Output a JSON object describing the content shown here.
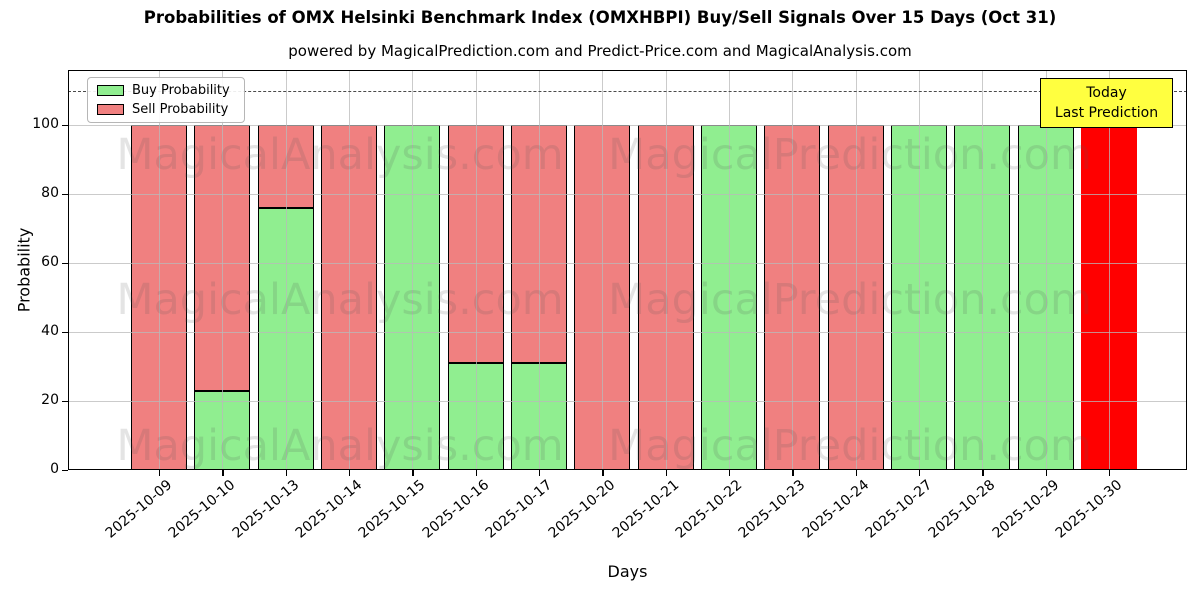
{
  "figure": {
    "title": "Probabilities of OMX Helsinki Benchmark Index (OMXHBPI) Buy/Sell Signals Over 15 Days (Oct 31)",
    "subtitle": "powered by MagicalPrediction.com and Predict-Price.com and MagicalAnalysis.com"
  },
  "axes": {
    "xlabel": "Days",
    "ylabel": "Probability"
  },
  "legend": {
    "items": [
      {
        "label": "Buy Probability",
        "color": "#90EE90"
      },
      {
        "label": "Sell Probability",
        "color": "#F08080"
      }
    ]
  },
  "annotation": {
    "line1": "Today",
    "line2": "Last Prediction",
    "bg_color": "#ffff40"
  },
  "watermarks": {
    "left_text": "MagicalAnalysis.com",
    "right_text": "MagicalPrediction.com"
  },
  "chart_data": {
    "type": "bar",
    "stacked": true,
    "title": "Probabilities of OMX Helsinki Benchmark Index (OMXHBPI) Buy/Sell Signals Over 15 Days (Oct 31)",
    "xlabel": "Days",
    "ylabel": "Probability",
    "categories": [
      "2025-10-09",
      "2025-10-10",
      "2025-10-13",
      "2025-10-14",
      "2025-10-15",
      "2025-10-16",
      "2025-10-17",
      "2025-10-20",
      "2025-10-21",
      "2025-10-22",
      "2025-10-23",
      "2025-10-24",
      "2025-10-27",
      "2025-10-28",
      "2025-10-29",
      "2025-10-30"
    ],
    "series": [
      {
        "name": "Buy Probability",
        "color": "#90EE90",
        "values": [
          0,
          23,
          76,
          0,
          100,
          31,
          31,
          0,
          0,
          100,
          0,
          0,
          100,
          100,
          100,
          0
        ]
      },
      {
        "name": "Sell Probability",
        "color": "#F08080",
        "values": [
          100,
          77,
          24,
          100,
          0,
          69,
          69,
          100,
          100,
          0,
          100,
          100,
          0,
          0,
          0,
          100
        ]
      }
    ],
    "today_bar": {
      "category": "2025-10-30",
      "index": 15,
      "signal": "Sell",
      "value": 100,
      "color": "#FF0000"
    },
    "yticks": [
      0,
      20,
      40,
      60,
      80,
      100
    ],
    "ylim": [
      0,
      116
    ],
    "dashed_line_y": 110,
    "grid": true,
    "legend_position": "upper-left",
    "annotation_text": "Today Last Prediction"
  }
}
